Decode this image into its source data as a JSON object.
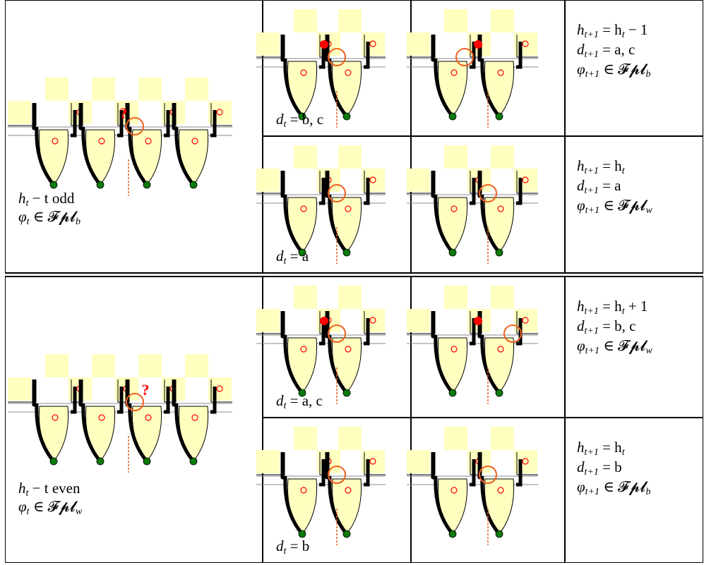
{
  "rows": [
    {
      "condition": [
        [
          {
            "text": "h",
            "sub": "t"
          },
          {
            "text": " − t odd"
          }
        ],
        [
          {
            "text": "φ",
            "sub": "t"
          },
          {
            "text": " ∈ 𝓕𝓹𝓵",
            "sub": "b"
          }
        ]
      ],
      "question_mark": "?",
      "cases": [
        {
          "d": [
            {
              "text": "d",
              "sub": "t"
            },
            {
              "text": " = b, c"
            }
          ],
          "result": [
            [
              {
                "text": "h",
                "sub": "t+1"
              },
              {
                "text": " = h",
                "sub": "t"
              },
              {
                "text": " − 1"
              }
            ],
            [
              {
                "text": "d",
                "sub": "t+1"
              },
              {
                "text": " = a, c"
              }
            ],
            [
              {
                "text": "φ",
                "sub": "t+1"
              },
              {
                "text": " ∈ 𝓕𝓹𝓵",
                "sub": "b"
              }
            ]
          ]
        },
        {
          "d": [
            {
              "text": "d",
              "sub": "t"
            },
            {
              "text": " = a"
            }
          ],
          "result": [
            [
              {
                "text": "h",
                "sub": "t+1"
              },
              {
                "text": " = h",
                "sub": "t"
              }
            ],
            [
              {
                "text": "d",
                "sub": "t+1"
              },
              {
                "text": " = a"
              }
            ],
            [
              {
                "text": "φ",
                "sub": "t+1"
              },
              {
                "text": " ∈ 𝓕𝓹𝓵",
                "sub": "w"
              }
            ]
          ]
        }
      ]
    },
    {
      "condition": [
        [
          {
            "text": "h",
            "sub": "t"
          },
          {
            "text": " − t even"
          }
        ],
        [
          {
            "text": "φ",
            "sub": "t"
          },
          {
            "text": " ∈ 𝓕𝓹𝓵",
            "sub": "w"
          }
        ]
      ],
      "question_mark": "?",
      "cases": [
        {
          "d": [
            {
              "text": "d",
              "sub": "t"
            },
            {
              "text": " = a, c"
            }
          ],
          "result": [
            [
              {
                "text": "h",
                "sub": "t+1"
              },
              {
                "text": " = h",
                "sub": "t"
              },
              {
                "text": " + 1"
              }
            ],
            [
              {
                "text": "d",
                "sub": "t+1"
              },
              {
                "text": " = b, c"
              }
            ],
            [
              {
                "text": "φ",
                "sub": "t+1"
              },
              {
                "text": " ∈ 𝓕𝓹𝓵",
                "sub": "w"
              }
            ]
          ]
        },
        {
          "d": [
            {
              "text": "d",
              "sub": "t"
            },
            {
              "text": " = b"
            }
          ],
          "result": [
            [
              {
                "text": "h",
                "sub": "t+1"
              },
              {
                "text": " = h",
                "sub": "t"
              }
            ],
            [
              {
                "text": "d",
                "sub": "t+1"
              },
              {
                "text": " = b"
              }
            ],
            [
              {
                "text": "φ",
                "sub": "t+1"
              },
              {
                "text": " ∈ 𝓕𝓹𝓵",
                "sub": "b"
              }
            ]
          ]
        }
      ]
    }
  ]
}
